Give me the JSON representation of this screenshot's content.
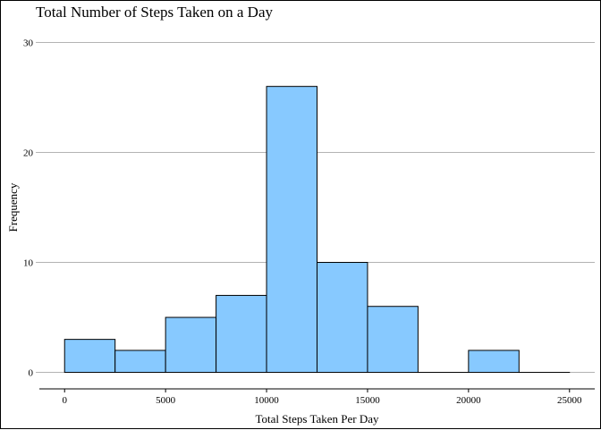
{
  "chart_data": {
    "type": "bar",
    "title": "Total Number of Steps Taken on a Day",
    "xlabel": "Total Steps Taken Per Day",
    "ylabel": "Frequency",
    "bin_edges": [
      0,
      2500,
      5000,
      7500,
      10000,
      12500,
      15000,
      17500,
      20000,
      22500,
      25000
    ],
    "values": [
      3,
      2,
      5,
      7,
      26,
      10,
      6,
      0,
      2,
      0
    ],
    "x_ticks": [
      0,
      5000,
      10000,
      15000,
      20000,
      25000
    ],
    "y_ticks": [
      0,
      10,
      20,
      30
    ],
    "xlim": [
      -1250,
      26250
    ],
    "ylim": [
      -1.5,
      31.5
    ],
    "grid": "horizontal",
    "colors": {
      "bar_fill": "#87C9FF",
      "bar_stroke": "#000000",
      "grid": "#B3B3B3",
      "axis": "#000000"
    }
  }
}
